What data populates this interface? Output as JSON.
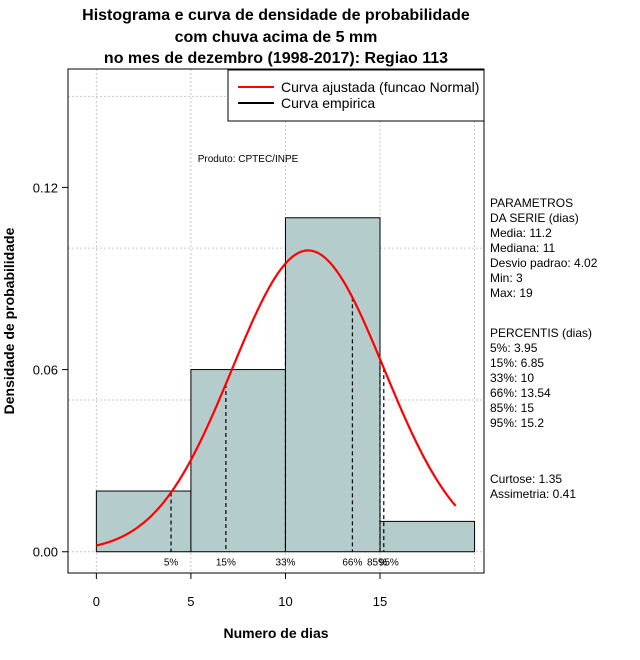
{
  "chart_data": {
    "type": "bar",
    "title_lines": [
      "Histograma e curva de densidade de probabilidade",
      "com chuva acima de 5 mm",
      "no mes de dezembro (1998-2017): Regiao 113"
    ],
    "xlabel": "Numero de dias",
    "ylabel": "Densidade de probabilidade",
    "xlim": [
      -1.5,
      20.5
    ],
    "ylim": [
      -0.007,
      0.159
    ],
    "x_ticks": [
      0,
      5,
      10,
      15
    ],
    "y_ticks": [
      0.0,
      0.06,
      0.12
    ],
    "y_tick_labels": [
      "0.00",
      "0.06",
      "0.12"
    ],
    "grid": true,
    "bins": [
      {
        "from": 0,
        "to": 5,
        "density": 0.02
      },
      {
        "from": 5,
        "to": 10,
        "density": 0.06
      },
      {
        "from": 10,
        "to": 15,
        "density": 0.11
      },
      {
        "from": 15,
        "to": 20,
        "density": 0.01
      }
    ],
    "fit": {
      "name": "Curva ajustada (funcao Normal)",
      "mean": 11.2,
      "sd": 4.02,
      "x_range": [
        0,
        19
      ],
      "color": "#ff0000"
    },
    "empirical": {
      "name": "Curva empirica",
      "color": "#000000"
    },
    "percentiles": [
      {
        "label": "5%",
        "x": 3.95
      },
      {
        "label": "15%",
        "x": 6.85
      },
      {
        "label": "33%",
        "x": 10
      },
      {
        "label": "66%",
        "x": 13.54
      },
      {
        "label": "85%",
        "x": 15
      },
      {
        "label": "95%",
        "x": 15.2
      }
    ],
    "bar_color": "#b5cccc",
    "legend_position": "top-right",
    "annotation": "Produto: CPTEC/INPE"
  },
  "side_panel": {
    "params_lines": [
      "PARAMETROS",
      "DA SERIE (dias)",
      "  Media: 11.2",
      "  Mediana: 11",
      "  Desvio padrao: 4.02",
      "  Min: 3",
      "  Max: 19"
    ],
    "percentis_lines": [
      "PERCENTIS (dias)",
      "  5%: 3.95",
      "  15%: 6.85",
      "  33%: 10",
      "  66%: 13.54",
      "  85%: 15",
      "  95%: 15.2"
    ],
    "stats_lines": [
      "    Curtose: 1.35",
      "Assimetria: 0.41"
    ]
  }
}
